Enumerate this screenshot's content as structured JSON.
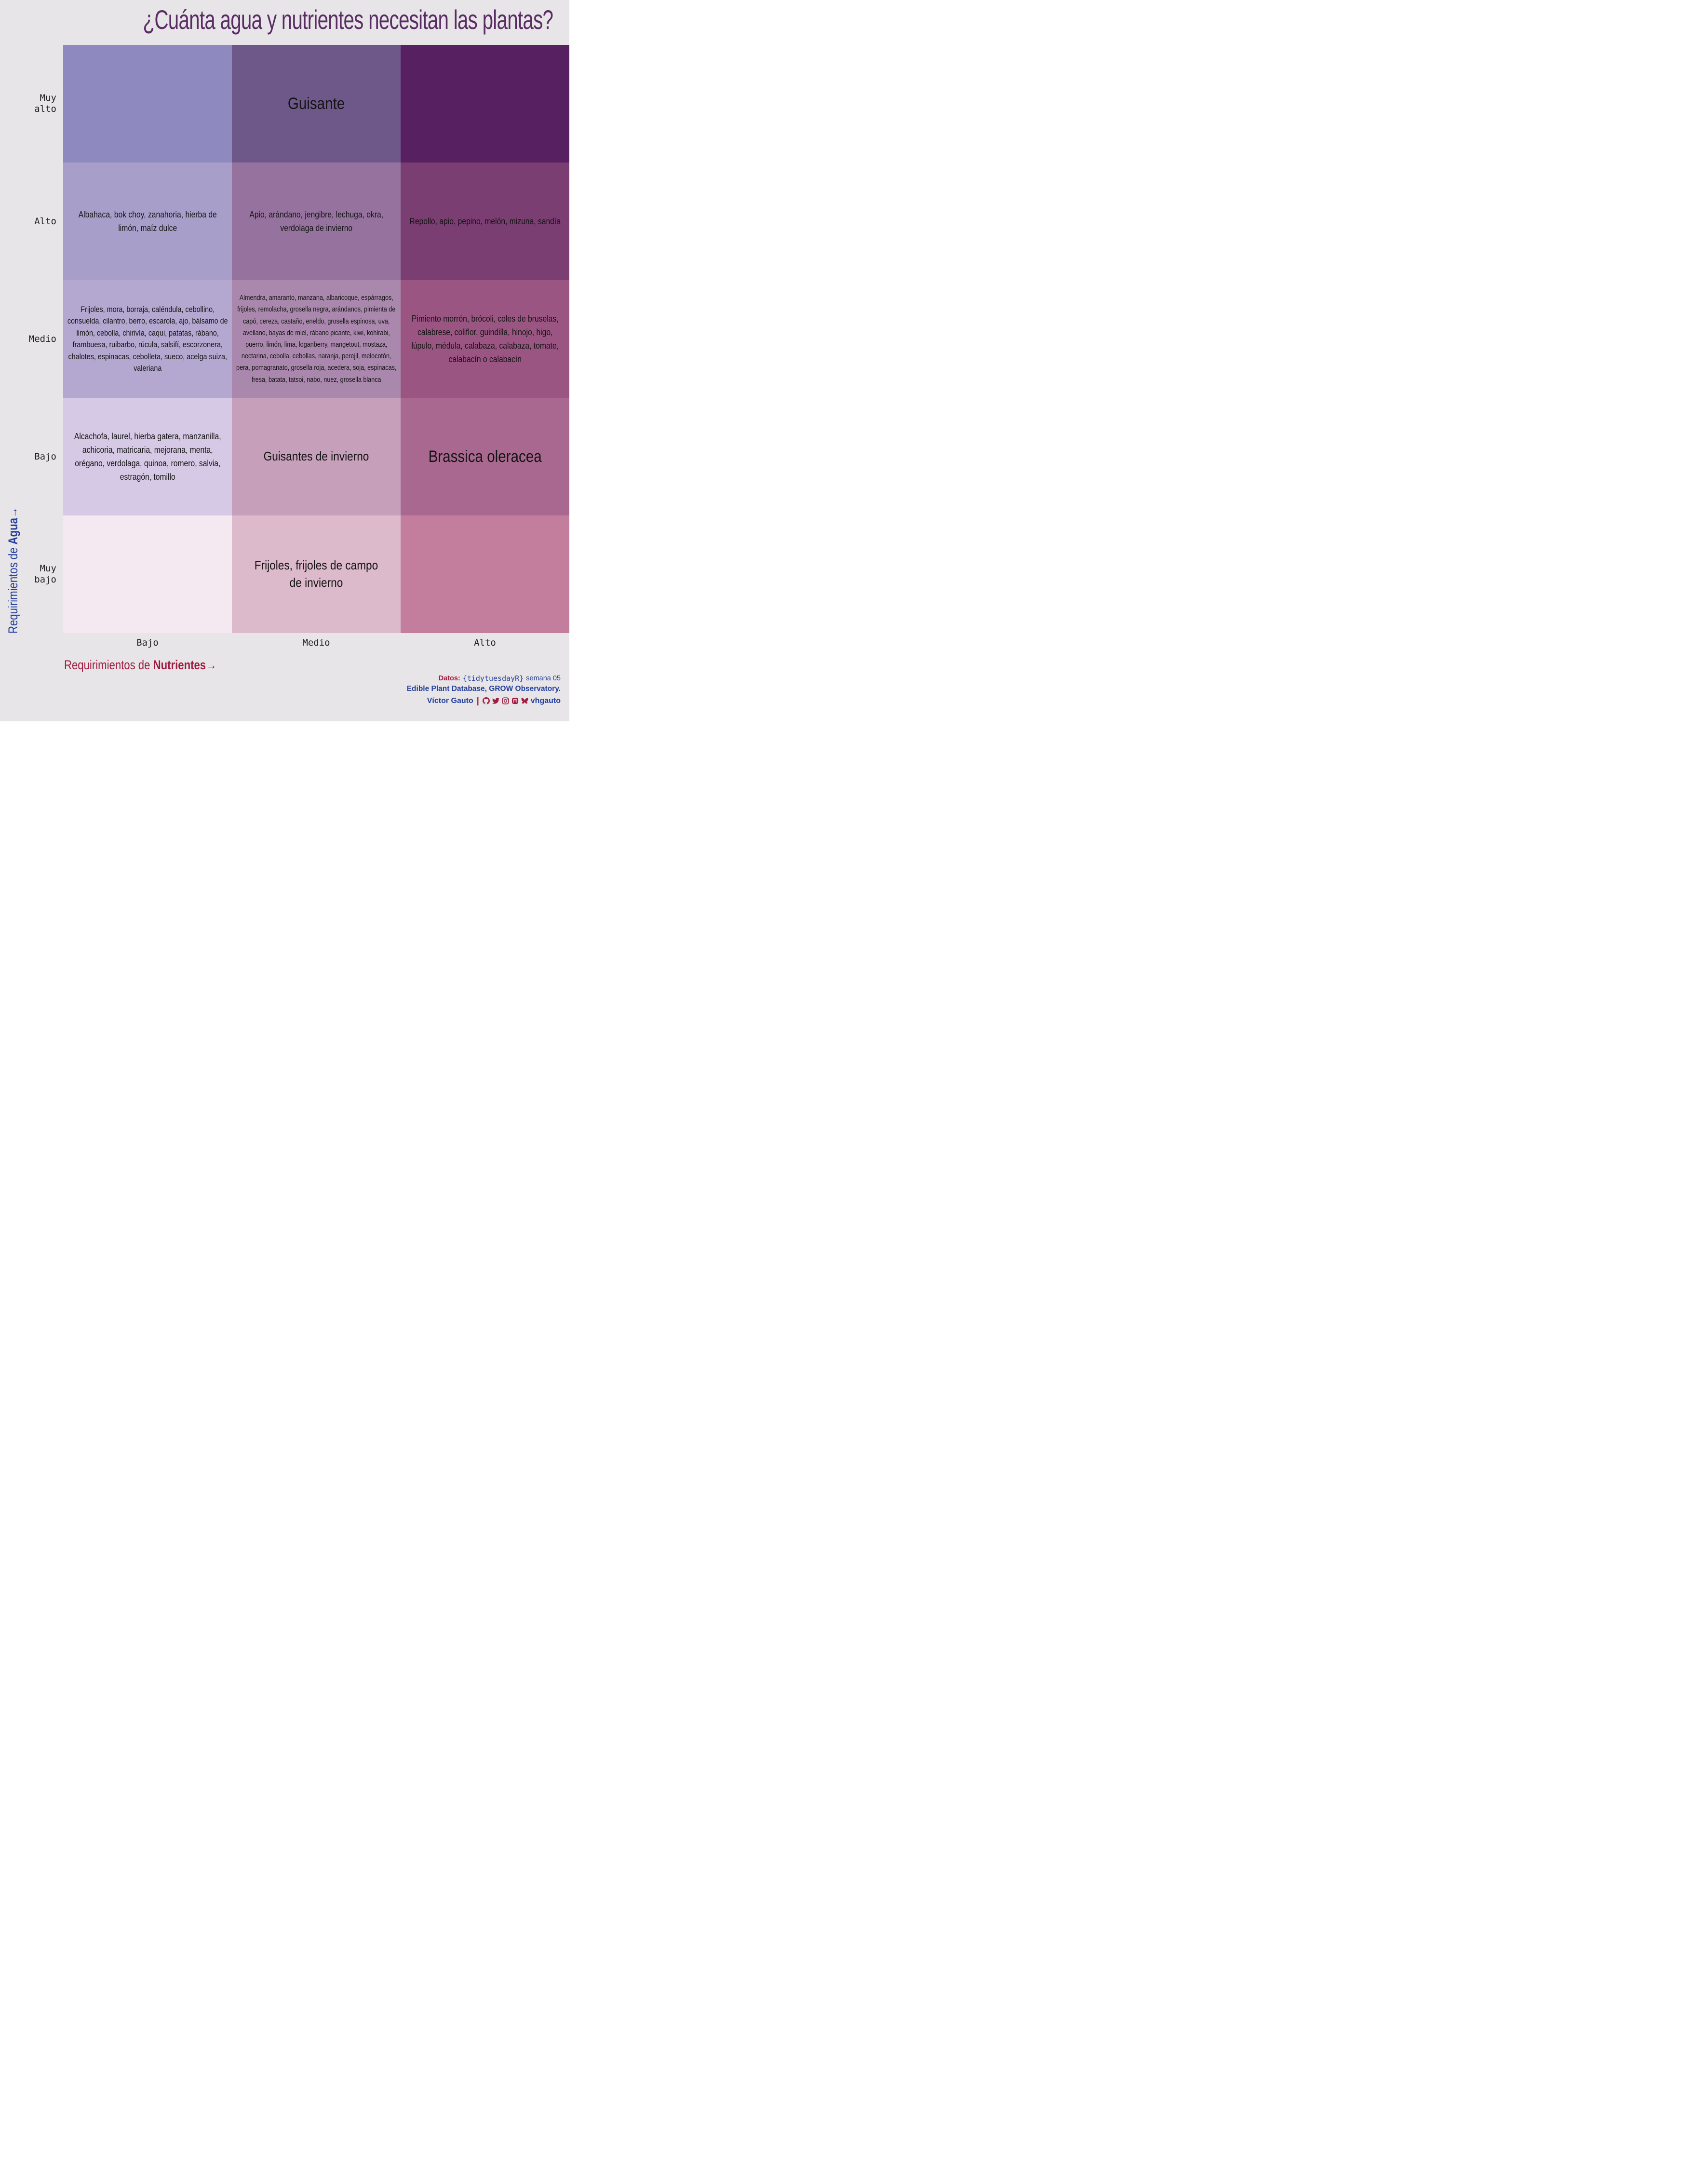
{
  "title": "¿Cuánta agua y nutrientes necesitan las plantas?",
  "colors": {
    "background": "#e7e5e7",
    "title": "#5a2c64",
    "water_axis": "#243f9c",
    "nutrient_axis": "#9f1c41",
    "cell_text": "#141414"
  },
  "axes": {
    "y": {
      "title_prefix": "Requirimientos de ",
      "title_bold": "Agua",
      "arrow": "→",
      "labels": [
        "Muy\nalto",
        "Alto",
        "Medio",
        "Bajo",
        "Muy\nbajo"
      ]
    },
    "x": {
      "title_prefix": "Requirimientos de ",
      "title_bold": "Nutrientes",
      "arrow": "→",
      "labels": [
        "Bajo",
        "Medio",
        "Alto"
      ]
    }
  },
  "chart_data": {
    "type": "heatmap",
    "title": "¿Cuánta agua y nutrientes necesitan las plantas?",
    "xlabel": "Requirimientos de Nutrientes",
    "ylabel": "Requirimientos de Agua",
    "x_categories": [
      "Bajo",
      "Medio",
      "Alto"
    ],
    "y_categories": [
      "Muy alto",
      "Alto",
      "Medio",
      "Bajo",
      "Muy bajo"
    ],
    "legend": "none",
    "cells": [
      {
        "water": "Muy alto",
        "nutrients": "Bajo",
        "color": "#8e8abf",
        "size": "md",
        "text": ""
      },
      {
        "water": "Muy alto",
        "nutrients": "Medio",
        "color": "#6e5889",
        "size": "xl",
        "text": "Guisante"
      },
      {
        "water": "Muy alto",
        "nutrients": "Alto",
        "color": "#572061",
        "size": "md",
        "text": ""
      },
      {
        "water": "Alto",
        "nutrients": "Bajo",
        "color": "#a89eca",
        "size": "md",
        "text": "Albahaca, bok choy, zanahoria, hierba de limón, maíz dulce"
      },
      {
        "water": "Alto",
        "nutrients": "Medio",
        "color": "#96739f",
        "size": "md",
        "text": "Apio, arándano, jengibre, lechuga, okra, verdolaga de invierno"
      },
      {
        "water": "Alto",
        "nutrients": "Alto",
        "color": "#7b3e73",
        "size": "md",
        "text": "Repollo, apio, pepino, melón, mizuna, sandía"
      },
      {
        "water": "Medio",
        "nutrients": "Bajo",
        "color": "#b4a8d1",
        "size": "sm",
        "text": "Frijoles, mora, borraja, caléndula, cebollino, consuelda, cilantro, berro, escarola, ajo, bálsamo de limón, cebolla, chirivía, caqui, patatas, rábano, frambuesa, ruibarbo, rúcula, salsifí, escorzonera, chalotes, espinacas, cebolleta, sueco, acelga suiza, valeriana"
      },
      {
        "water": "Medio",
        "nutrients": "Medio",
        "color": "#aa87ad",
        "size": "xs",
        "text": "Almendra, amaranto, manzana, albaricoque, espárragos, frijoles, remolacha, grosella negra, arándanos, pimienta de capó, cereza, castaño, eneldo, grosella espinosa, uva, avellano, bayas de miel, rábano picante, kiwi, kohlrabi, puerro, limón, lima, loganberry, mangetout, mostaza, nectarina, cebolla, cebollas, naranja, perejil, melocotón, pera, pomagranato, grosella roja, acedera, soja, espinacas, fresa, batata, tatsoi, nabo, nuez, grosella blanca"
      },
      {
        "water": "Medio",
        "nutrients": "Alto",
        "color": "#9b5582",
        "size": "md",
        "text": "Pimiento morrón, brócoli, coles de bruselas, calabrese, coliflor, guindilla, hinojo, higo, lúpulo, médula, calabaza, calabaza, tomate, calabacín o calabacín"
      },
      {
        "water": "Bajo",
        "nutrients": "Bajo",
        "color": "#d6c9e5",
        "size": "md",
        "text": "Alcachofa, laurel, hierba gatera, manzanilla, achicoria, matricaria, mejorana, menta, orégano, verdolaga, quinoa, romero, salvia, estragón, tomillo"
      },
      {
        "water": "Bajo",
        "nutrients": "Medio",
        "color": "#c6a0ba",
        "size": "lg",
        "text": "Guisantes de invierno"
      },
      {
        "water": "Bajo",
        "nutrients": "Alto",
        "color": "#a9688f",
        "size": "xl",
        "text": "Brassica oleracea"
      },
      {
        "water": "Muy bajo",
        "nutrients": "Bajo",
        "color": "#f4e8f1",
        "size": "md",
        "text": ""
      },
      {
        "water": "Muy bajo",
        "nutrients": "Medio",
        "color": "#dcb9cb",
        "size": "lg",
        "text": "Frijoles, frijoles de campo de invierno"
      },
      {
        "water": "Muy bajo",
        "nutrients": "Alto",
        "color": "#c47e9d",
        "size": "md",
        "text": ""
      }
    ]
  },
  "footer": {
    "datos_label": "Datos:",
    "package": "{tidytuesdayR}",
    "week": "semana 05",
    "source": "Edible Plant Database, GROW Observatory.",
    "author": "Víctor Gauto",
    "separator": "|",
    "icons": [
      "github-icon",
      "twitter-icon",
      "instagram-icon",
      "mastodon-icon",
      "bluesky-icon"
    ],
    "handle": "vhgauto"
  }
}
